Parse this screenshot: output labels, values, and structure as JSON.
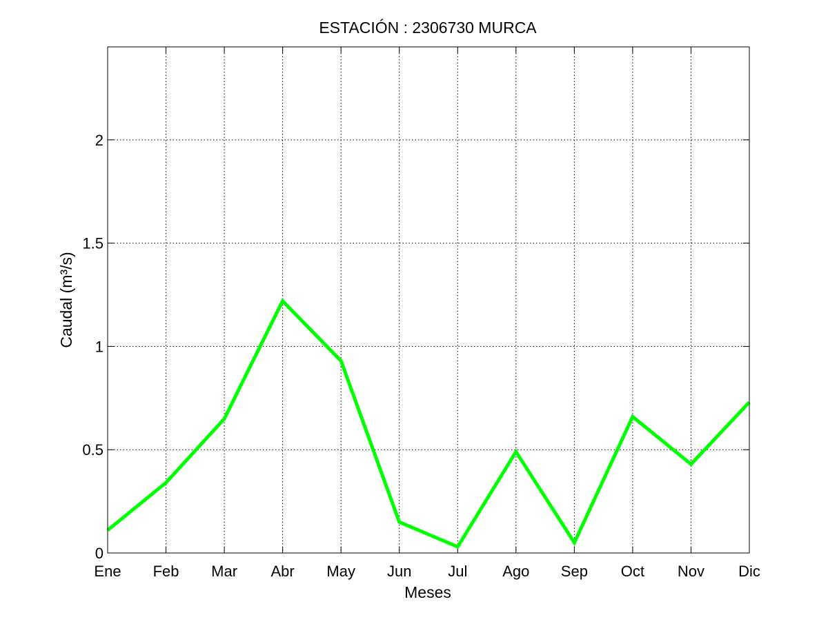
{
  "chart_data": {
    "type": "line",
    "title": "ESTACIÓN :  2306730  MURCA",
    "xlabel": "Meses",
    "ylabel": "Caudal (m³/s)",
    "categories": [
      "Ene",
      "Feb",
      "Mar",
      "Abr",
      "May",
      "Jun",
      "Jul",
      "Ago",
      "Sep",
      "Oct",
      "Nov",
      "Dic"
    ],
    "ylim": [
      0,
      2.45
    ],
    "yticks": [
      0,
      0.5,
      1,
      1.5,
      2
    ],
    "ytick_labels": [
      "0",
      "0.5",
      "1",
      "1.5",
      "2"
    ],
    "grid": true,
    "series": [
      {
        "color": "#00ff00",
        "values": [
          0.11,
          0.34,
          0.65,
          1.22,
          0.93,
          0.15,
          0.03,
          0.49,
          0.05,
          0.66,
          0.43,
          0.73
        ]
      }
    ]
  }
}
